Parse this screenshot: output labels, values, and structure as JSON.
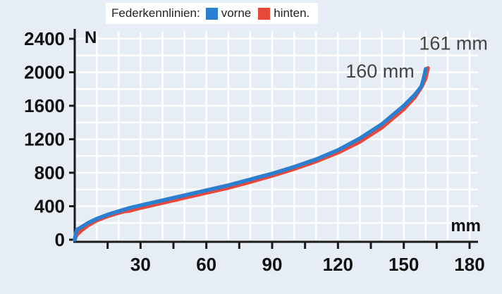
{
  "legend": {
    "title": "Federkennlinien:",
    "entries": [
      {
        "label": "vorne",
        "color": "#2a7fd0"
      },
      {
        "label": "hinten.",
        "color": "#e8483a"
      }
    ]
  },
  "chart_data": {
    "type": "line",
    "title": "",
    "xlabel": "mm",
    "ylabel": "N",
    "xlim": [
      0,
      180
    ],
    "ylim": [
      0,
      2400
    ],
    "xticks": [
      30,
      60,
      90,
      120,
      150,
      180
    ],
    "yticks": [
      0,
      400,
      800,
      1200,
      1600,
      2000,
      2400
    ],
    "grid": true,
    "legend_position": "top",
    "colors": {
      "background": "#e6edf5",
      "grid": "#ffffff",
      "axis": "#1a1a1a"
    },
    "series": [
      {
        "name": "vorne",
        "color": "#2a7fd0",
        "x": [
          0,
          0.5,
          1,
          3,
          6,
          10,
          15,
          20,
          25,
          30,
          40,
          50,
          60,
          70,
          80,
          90,
          100,
          110,
          120,
          130,
          140,
          150,
          155,
          158,
          159,
          160
        ],
        "y": [
          0,
          80,
          120,
          150,
          200,
          250,
          300,
          340,
          380,
          410,
          470,
          530,
          590,
          650,
          720,
          790,
          870,
          960,
          1070,
          1210,
          1380,
          1600,
          1730,
          1830,
          1920,
          2040
        ]
      },
      {
        "name": "hinten",
        "color": "#e8483a",
        "x": [
          0,
          0.5,
          1,
          3,
          6,
          10,
          15,
          20,
          23,
          25,
          30,
          40,
          50,
          60,
          70,
          80,
          90,
          100,
          110,
          120,
          130,
          140,
          150,
          155,
          158,
          160,
          161
        ],
        "y": [
          0,
          40,
          60,
          110,
          170,
          230,
          280,
          320,
          340,
          345,
          380,
          440,
          500,
          560,
          620,
          690,
          765,
          845,
          935,
          1040,
          1170,
          1340,
          1560,
          1700,
          1820,
          1930,
          2050
        ]
      }
    ],
    "annotations": [
      {
        "text": "160 mm",
        "x": 160,
        "y": 2040
      },
      {
        "text": "161 mm",
        "x": 161,
        "y": 2050
      }
    ]
  }
}
